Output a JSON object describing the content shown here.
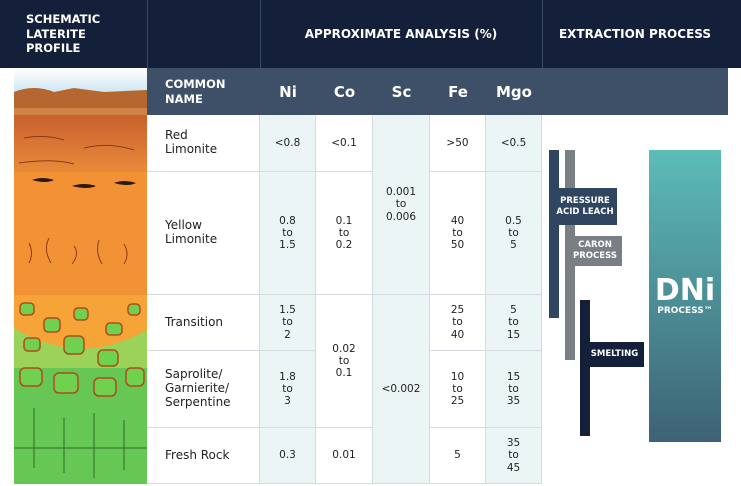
{
  "header": {
    "profile_title": "SCHEMATIC LATERITE PROFILE",
    "analysis_title": "APPROXIMATE ANALYSIS (%)",
    "process_title": "EXTRACTION PROCESS"
  },
  "table": {
    "columns": [
      "COMMON NAME",
      "Ni",
      "Co",
      "Sc",
      "Fe",
      "Mgo"
    ],
    "rows": [
      {
        "COMMON NAME": "Red\nLimonite",
        "Ni": "<0.8",
        "Co": "<0.1",
        "Sc": "0.001\nto\n0.006",
        "Fe": ">50",
        "Mgo": "<0.5"
      },
      {
        "COMMON NAME": "Yellow\nLimonite",
        "Ni": "0.8\nto\n1.5",
        "Co": "0.1\nto\n0.2",
        "Fe": "40\nto\n50",
        "Mgo": "0.5\nto\n5"
      },
      {
        "COMMON NAME": "Transition",
        "Ni": "1.5\nto\n2",
        "Co": "0.02\nto\n0.1",
        "Sc": "<0.002",
        "Fe": "25\nto\n40",
        "Mgo": "5\nto\n15"
      },
      {
        "COMMON NAME": "Saprolite/\nGarnierite/\nSerpentine",
        "Ni": "1.8\nto\n3",
        "Fe": "10\nto\n25",
        "Mgo": "15\nto\n35"
      },
      {
        "COMMON NAME": "Fresh Rock",
        "Ni": "0.3",
        "Co": "0.01",
        "Fe": "5",
        "Mgo": "35\nto\n45"
      }
    ]
  },
  "processes": {
    "pressure_acid_leach": "PRESSURE\nACID LEACH",
    "caron": "CARON\nPROCESS",
    "smelting": "SMELTING",
    "dni": "DNi",
    "dni_sub": "PROCESS™"
  }
}
